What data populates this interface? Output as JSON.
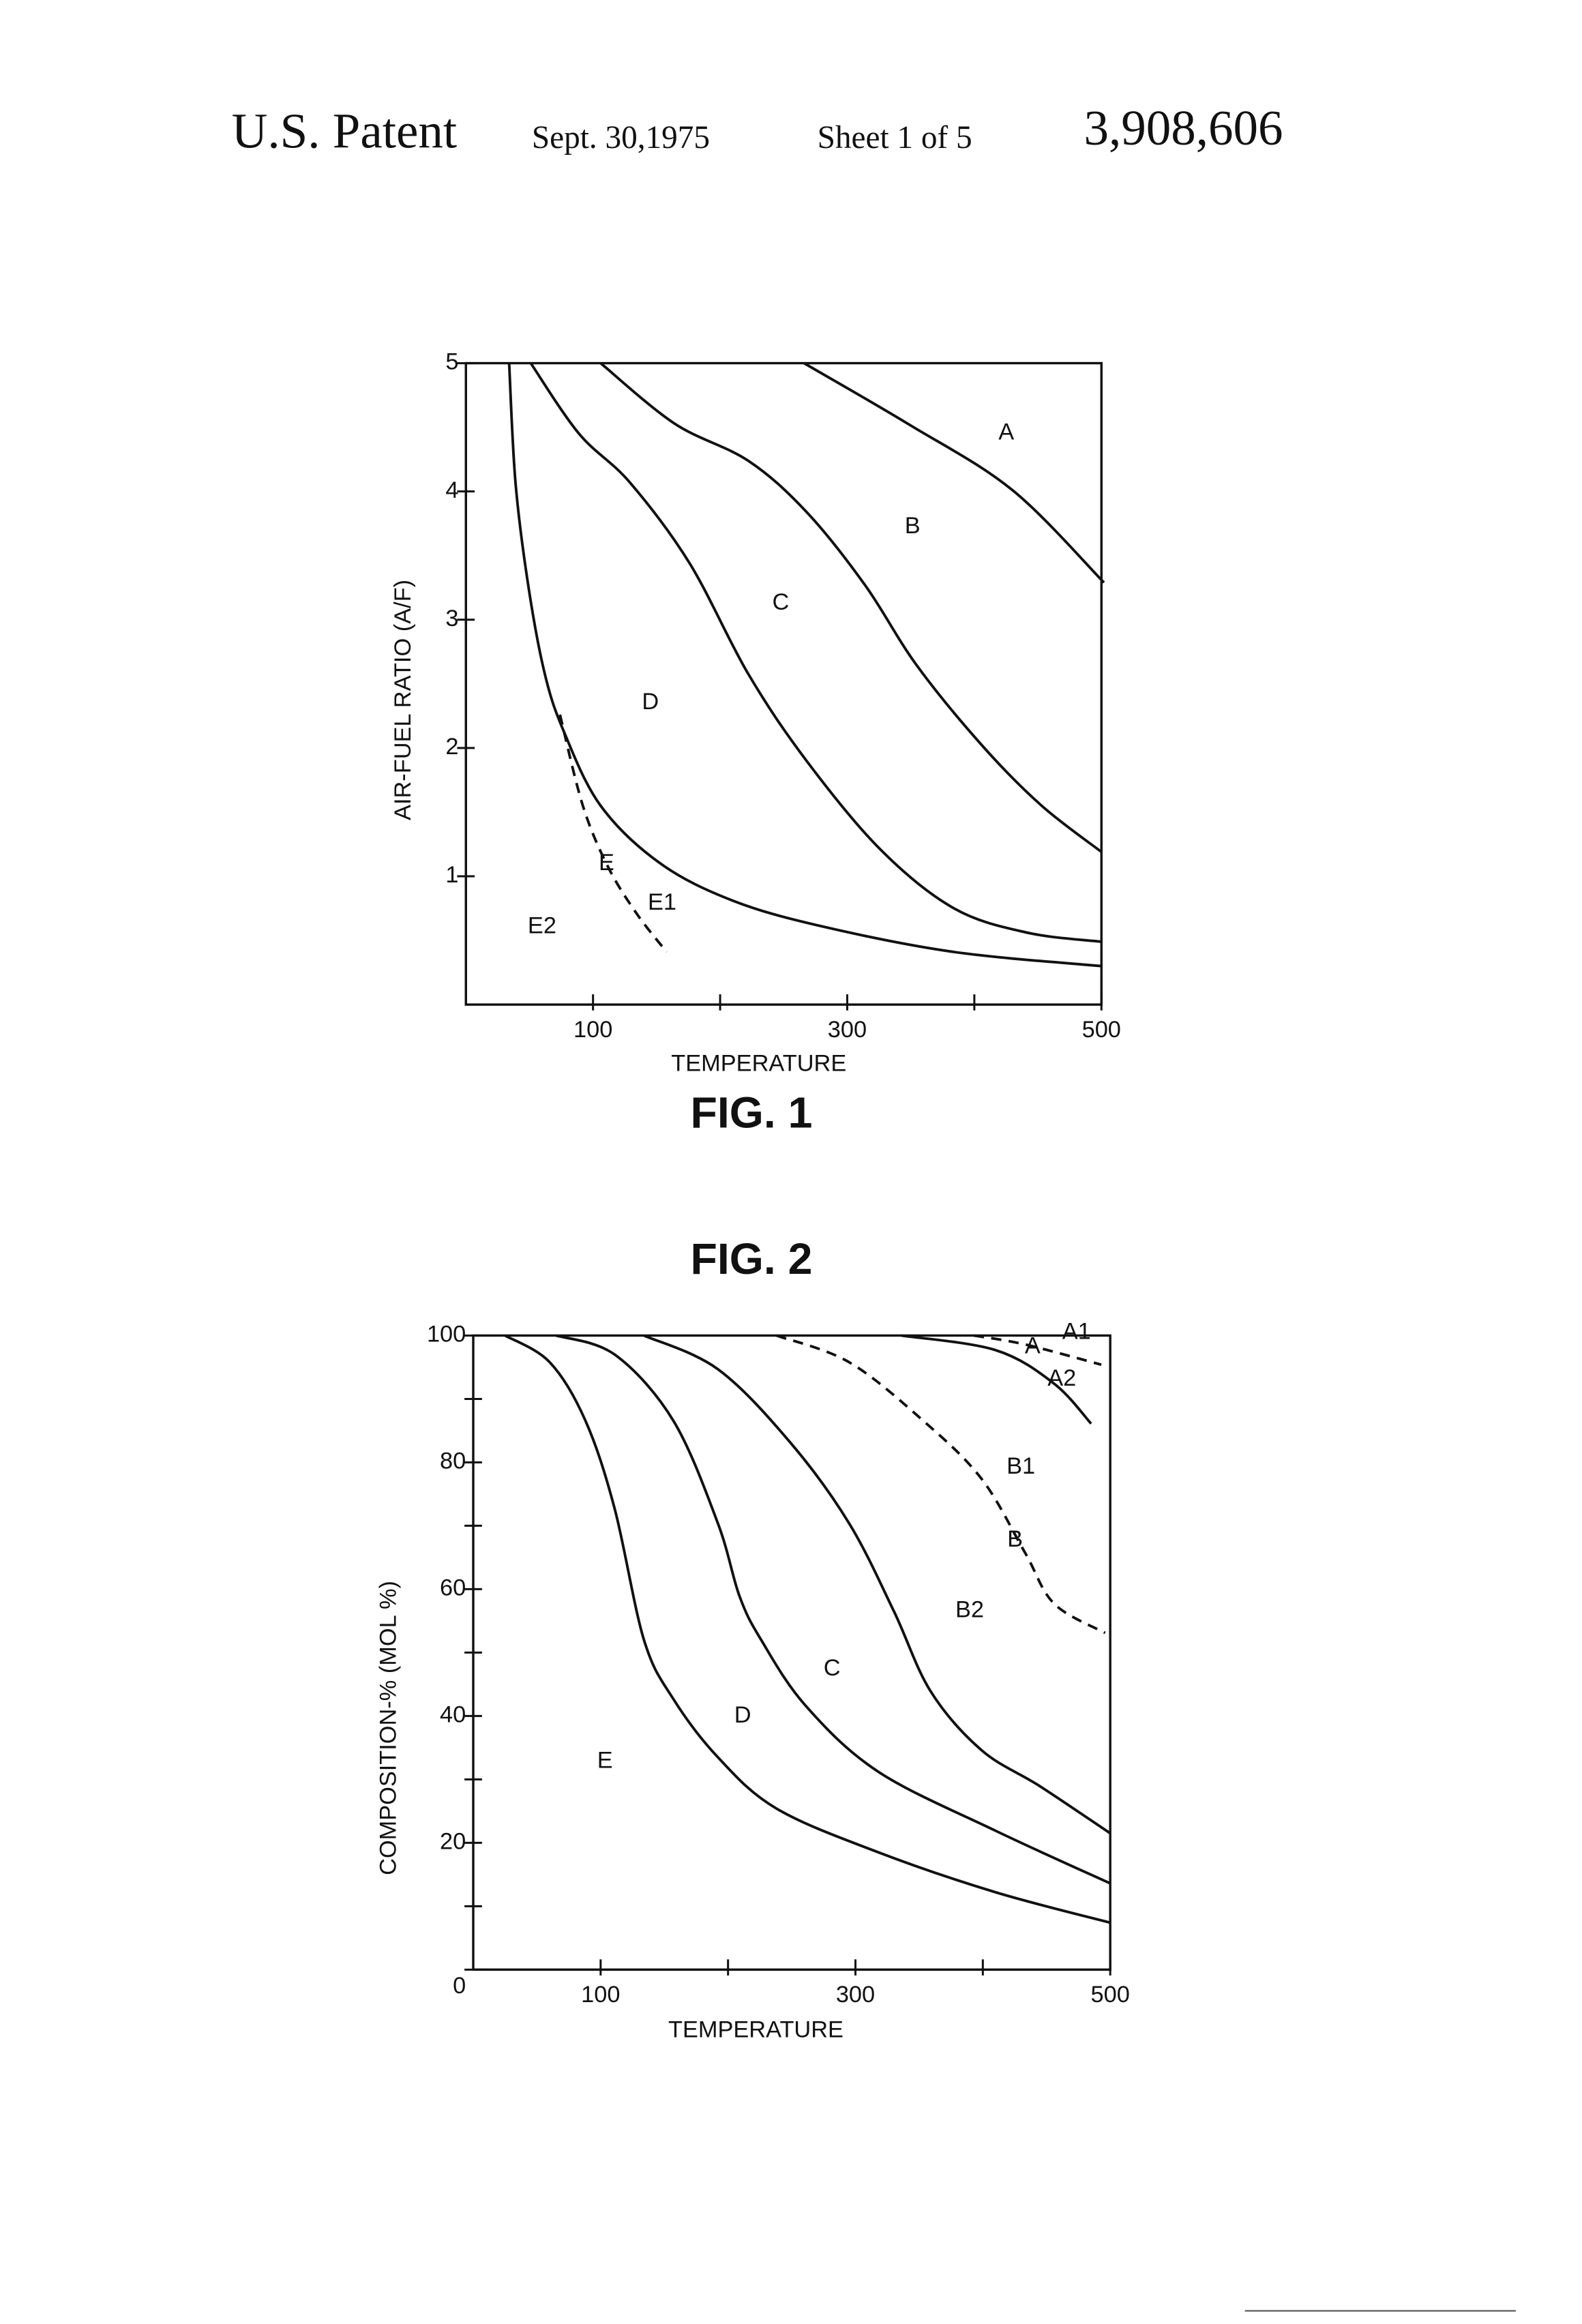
{
  "header": {
    "left": "U.S. Patent",
    "date": "Sept. 30,1975",
    "sheet": "Sheet 1 of 5",
    "number": "3,908,606"
  },
  "chart_data": [
    {
      "type": "line",
      "title": "FIG. 1",
      "xlabel": "TEMPERATURE",
      "ylabel": "AIR-FUEL RATIO (A/F)",
      "xlim": [
        0,
        500
      ],
      "ylim": [
        0,
        5
      ],
      "xticks": [
        100,
        300,
        500
      ],
      "xminor_ticks": [
        200,
        400
      ],
      "yticks": [
        1,
        2,
        3,
        4,
        5
      ],
      "series": [
        {
          "color": "#111111",
          "dashed": false,
          "x": [
            266,
            349,
            430,
            502
          ],
          "values": [
            5,
            4.52,
            4.01,
            3.29
          ]
        },
        {
          "color": "#111111",
          "dashed": false,
          "x": [
            106,
            164,
            222,
            268,
            314,
            355,
            407,
            453,
            500
          ],
          "values": [
            5,
            4.53,
            4.24,
            3.84,
            3.27,
            2.64,
            2.01,
            1.55,
            1.19
          ]
        },
        {
          "color": "#111111",
          "dashed": false,
          "x": [
            51,
            89,
            129,
            176,
            222,
            268,
            326,
            384,
            442,
            500
          ],
          "values": [
            5,
            4.45,
            4.07,
            3.44,
            2.58,
            1.9,
            1.21,
            0.75,
            0.56,
            0.49
          ]
        },
        {
          "color": "#111111",
          "dashed": false,
          "x": [
            34,
            39,
            49,
            62,
            77,
            106,
            153,
            210,
            280,
            384,
            500
          ],
          "values": [
            5,
            4.07,
            3.27,
            2.58,
            2.13,
            1.55,
            1.1,
            0.81,
            0.61,
            0.41,
            0.3
          ]
        },
        {
          "color": "#111111",
          "dashed": true,
          "x": [
            74,
            92,
            112,
            135,
            158
          ],
          "values": [
            2.26,
            1.55,
            1.07,
            0.7,
            0.41
          ]
        }
      ],
      "annotations": [
        "A",
        "B",
        "C",
        "D",
        "E",
        "E1",
        "E2"
      ]
    },
    {
      "type": "line",
      "title": "FIG. 2",
      "xlabel": "TEMPERATURE",
      "ylabel": "COMPOSITION-% (MOL %)",
      "xlim": [
        0,
        500
      ],
      "ylim": [
        0,
        100
      ],
      "xticks": [
        100,
        300,
        500
      ],
      "xminor_ticks": [
        200,
        400
      ],
      "yticks": [
        0,
        20,
        40,
        60,
        80,
        100
      ],
      "yminor_ticks": [
        10,
        30,
        50,
        70,
        90
      ],
      "series": [
        {
          "color": "#111111",
          "dashed": false,
          "x": [
            25,
            60,
            88,
            111,
            134,
            157,
            192,
            238,
            318,
            410,
            500
          ],
          "values": [
            100,
            95.8,
            86.6,
            72.7,
            52,
            42.7,
            33.5,
            25.4,
            18.5,
            12.2,
            7.4
          ]
        },
        {
          "color": "#111111",
          "dashed": false,
          "x": [
            65,
            111,
            157,
            192,
            209,
            226,
            261,
            318,
            410,
            500
          ],
          "values": [
            100,
            97,
            86.6,
            70.4,
            58.9,
            52,
            41.6,
            31.2,
            21.9,
            13.6
          ]
        },
        {
          "color": "#111111",
          "dashed": false,
          "x": [
            134,
            192,
            249,
            295,
            330,
            359,
            399,
            445,
            500
          ],
          "values": [
            100,
            94.7,
            83.1,
            70.4,
            56.6,
            43.9,
            34.6,
            28.9,
            21.5
          ]
        },
        {
          "color": "#111111",
          "dashed": false,
          "x": [
            336,
            410,
            456,
            485
          ],
          "values": [
            100,
            97.7,
            92.4,
            86.1
          ]
        },
        {
          "color": "#111111",
          "dashed": true,
          "x": [
            238,
            295,
            353,
            399,
            433,
            456,
            496
          ],
          "values": [
            100,
            95.8,
            86.6,
            77.4,
            65.8,
            57.7,
            53.1
          ]
        },
        {
          "color": "#111111",
          "dashed": true,
          "x": [
            393,
            433,
            493
          ],
          "values": [
            100,
            98.6,
            95.4
          ]
        }
      ],
      "annotations": [
        "A1",
        "A",
        "A2",
        "B1",
        "B",
        "B2",
        "C",
        "D",
        "E"
      ]
    }
  ]
}
